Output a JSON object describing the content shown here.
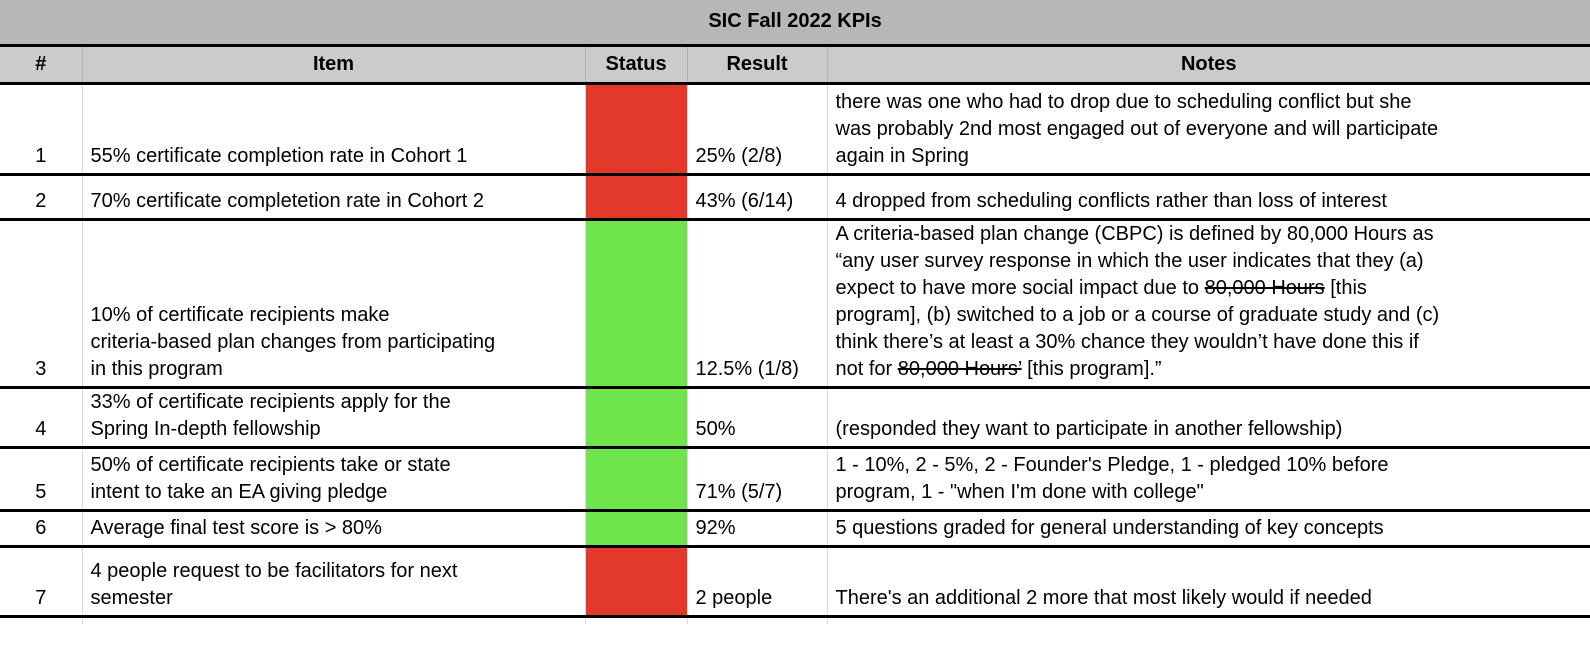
{
  "title": "SIC Fall 2022 KPIs",
  "columns": [
    "#",
    "Item",
    "Status",
    "Result",
    "Notes"
  ],
  "colors": {
    "red": "#e3392b",
    "green": "#6ee54a",
    "title_bg": "#b7b7b7",
    "header_bg": "#cbcbcb"
  },
  "rows": [
    {
      "num": "1",
      "item": [
        "55% certificate completion rate in Cohort 1"
      ],
      "status": "red",
      "result": "25% (2/8)",
      "notes": [
        "there was one who had to drop due to scheduling conflict but she",
        "was probably 2nd most engaged out of everyone and will participate",
        "again in Spring"
      ]
    },
    {
      "num": "2",
      "item": [
        "70% certificate completetion rate in Cohort 2"
      ],
      "status": "red",
      "result": "43% (6/14)",
      "notes": [
        "4 dropped from scheduling conflicts rather than loss of interest"
      ]
    },
    {
      "num": "3",
      "item": [
        "10% of certificate recipients make",
        "criteria-based plan changes from participating",
        "in this program"
      ],
      "status": "green",
      "result": "12.5% (1/8)",
      "notes": [
        "A criteria-based plan change (CBPC) is defined by 80,000 Hours as",
        "“any user survey response in which the user indicates that they (a)",
        [
          {
            "t": "expect to have more social impact due to "
          },
          {
            "t": "80,000 Hours",
            "strike": true
          },
          {
            "t": " [this"
          }
        ],
        "program], (b) switched to a job or a course of graduate study and (c)",
        "think there’s at least a 30% chance they wouldn’t have done this if",
        [
          {
            "t": "not for "
          },
          {
            "t": "80,000 Hours’",
            "strike": true
          },
          {
            "t": " [this program].”"
          }
        ]
      ]
    },
    {
      "num": "4",
      "item": [
        "33% of certificate recipients apply for the",
        "Spring In-depth fellowship"
      ],
      "status": "green",
      "result": "50%",
      "notes": [
        "(responded they want to participate in another fellowship)"
      ]
    },
    {
      "num": "5",
      "item": [
        "50% of certificate recipients take or state",
        "intent to take an EA giving pledge"
      ],
      "status": "green",
      "result": "71% (5/7)",
      "notes": [
        "1 - 10%, 2 - 5%, 2 - Founder's Pledge, 1 - pledged 10% before",
        "program, 1 - \"when I'm done with college\""
      ]
    },
    {
      "num": "6",
      "item": [
        "Average final test score is > 80%"
      ],
      "status": "green",
      "result": "92%",
      "notes": [
        "5 questions graded for general understanding of key concepts"
      ]
    },
    {
      "num": "7",
      "item": [
        "4 people request to be facilitators for next",
        "semester"
      ],
      "status": "red",
      "result": "2 people",
      "notes": [
        "There's an additional 2 more that most likely would if needed"
      ]
    }
  ]
}
